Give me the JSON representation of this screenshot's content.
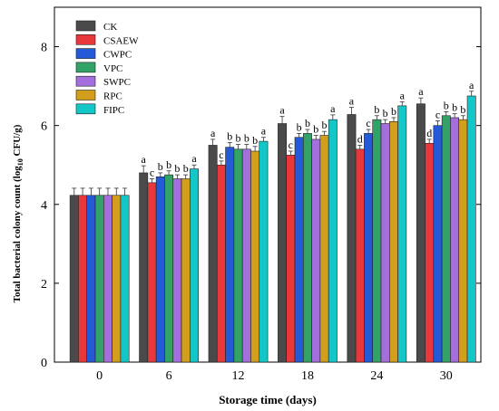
{
  "chart_data": {
    "type": "bar",
    "title": "",
    "xlabel": "Storage time (days)",
    "ylabel": "Total bacterial colony count (log",
    "ylabel_sub": "10",
    "ylabel_unit": " CFU/g)",
    "ylim": [
      0,
      9
    ],
    "yticks": [
      0,
      2,
      4,
      6,
      8
    ],
    "categories": [
      "0",
      "6",
      "12",
      "18",
      "24",
      "30"
    ],
    "legend_position": "top-left",
    "grid": false,
    "series": [
      {
        "name": "CK",
        "color": "#4a4a4a",
        "values": [
          4.23,
          4.8,
          5.5,
          6.05,
          6.28,
          6.55
        ],
        "errors": [
          0.18,
          0.18,
          0.15,
          0.18,
          0.18,
          0.15
        ],
        "letters": [
          "",
          "a",
          "a",
          "a",
          "a",
          "a"
        ]
      },
      {
        "name": "CSAEW",
        "color": "#e8383c",
        "values": [
          4.23,
          4.55,
          5.0,
          5.25,
          5.4,
          5.55
        ],
        "errors": [
          0.18,
          0.1,
          0.1,
          0.1,
          0.1,
          0.1
        ],
        "letters": [
          "",
          "c",
          "c",
          "c",
          "d",
          "d"
        ]
      },
      {
        "name": "CWPC",
        "color": "#2459d8",
        "values": [
          4.23,
          4.7,
          5.45,
          5.7,
          5.8,
          6.0
        ],
        "errors": [
          0.18,
          0.1,
          0.12,
          0.1,
          0.1,
          0.12
        ],
        "letters": [
          "",
          "b",
          "b",
          "b",
          "c",
          "c"
        ]
      },
      {
        "name": "VPC",
        "color": "#33a266",
        "values": [
          4.23,
          4.75,
          5.4,
          5.8,
          6.15,
          6.25
        ],
        "errors": [
          0.18,
          0.1,
          0.12,
          0.1,
          0.1,
          0.1
        ],
        "letters": [
          "",
          "b",
          "b",
          "b",
          "b",
          "b"
        ]
      },
      {
        "name": "SWPC",
        "color": "#a46fdc",
        "values": [
          4.23,
          4.65,
          5.4,
          5.65,
          6.05,
          6.2
        ],
        "errors": [
          0.18,
          0.1,
          0.12,
          0.1,
          0.1,
          0.1
        ],
        "letters": [
          "",
          "b",
          "b",
          "b",
          "b",
          "b"
        ]
      },
      {
        "name": "RPC",
        "color": "#d29e1c",
        "values": [
          4.23,
          4.65,
          5.35,
          5.75,
          6.1,
          6.15
        ],
        "errors": [
          0.18,
          0.1,
          0.12,
          0.1,
          0.1,
          0.1
        ],
        "letters": [
          "",
          "b",
          "b",
          "b",
          "b",
          "b"
        ]
      },
      {
        "name": "FIPC",
        "color": "#13c7c9",
        "values": [
          4.23,
          4.9,
          5.6,
          6.15,
          6.5,
          6.75
        ],
        "errors": [
          0.18,
          0.1,
          0.1,
          0.12,
          0.1,
          0.12
        ],
        "letters": [
          "",
          "a",
          "a",
          "a",
          "a",
          "a"
        ]
      }
    ]
  }
}
